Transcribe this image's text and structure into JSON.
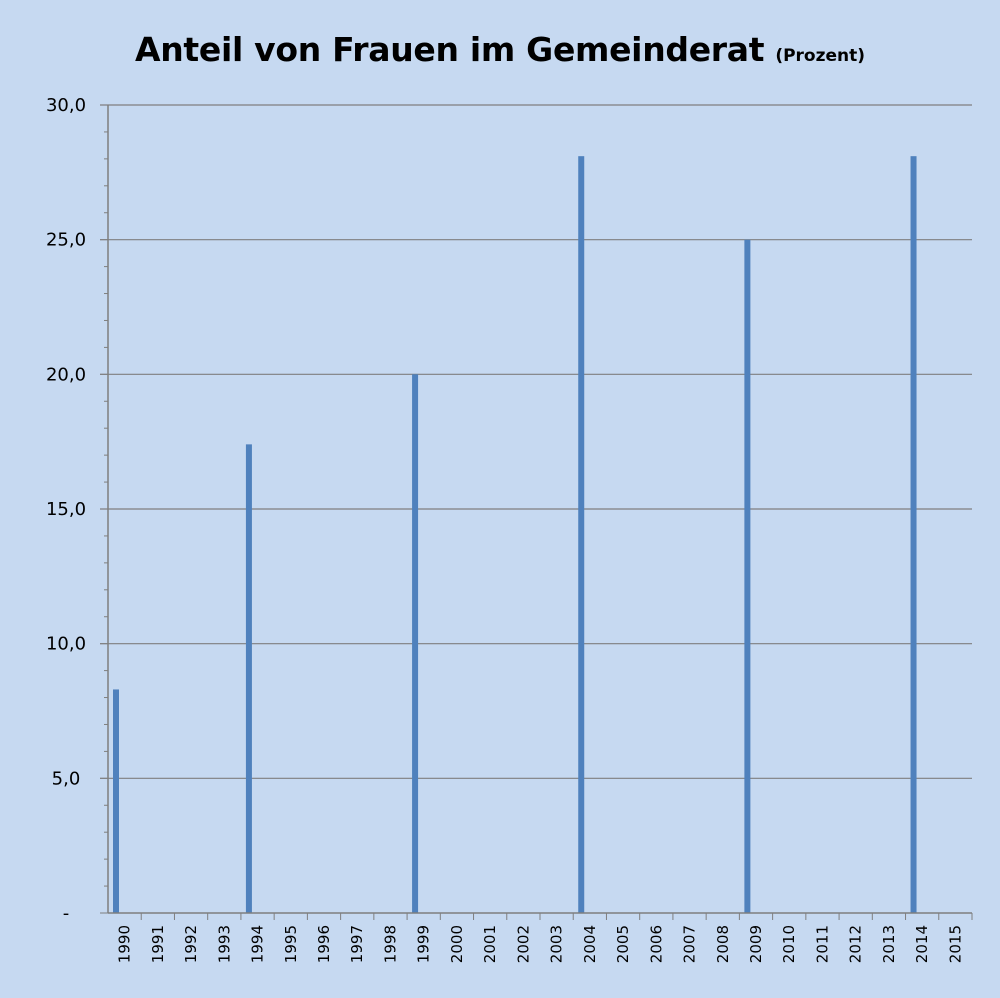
{
  "chart_data": {
    "type": "bar",
    "title": "Anteil von Frauen im Gemeinderat",
    "subtitle": "(Prozent)",
    "xlabel": "",
    "ylabel": "",
    "ylim": [
      0,
      30
    ],
    "y_ticks": [
      0,
      5,
      10,
      15,
      20,
      25,
      30
    ],
    "y_tick_labels": [
      "-",
      "5,0",
      "10,0",
      "15,0",
      "20,0",
      "25,0",
      "30,0"
    ],
    "grid": true,
    "legend": "none",
    "categories": [
      "1990",
      "1991",
      "1992",
      "1993",
      "1994",
      "1995",
      "1996",
      "1997",
      "1998",
      "1999",
      "2000",
      "2001",
      "2002",
      "2003",
      "2004",
      "2005",
      "2006",
      "2007",
      "2008",
      "2009",
      "2010",
      "2011",
      "2012",
      "2013",
      "2014",
      "2015"
    ],
    "values": [
      8.3,
      null,
      null,
      null,
      17.4,
      null,
      null,
      null,
      null,
      20.0,
      null,
      null,
      null,
      null,
      28.1,
      null,
      null,
      null,
      null,
      25.0,
      null,
      null,
      null,
      null,
      28.1,
      null
    ],
    "colors": {
      "bar": "#4f81bd",
      "background": "#c6d9f1",
      "grid": "#7f7f7f",
      "axis": "#7f7f7f"
    }
  }
}
